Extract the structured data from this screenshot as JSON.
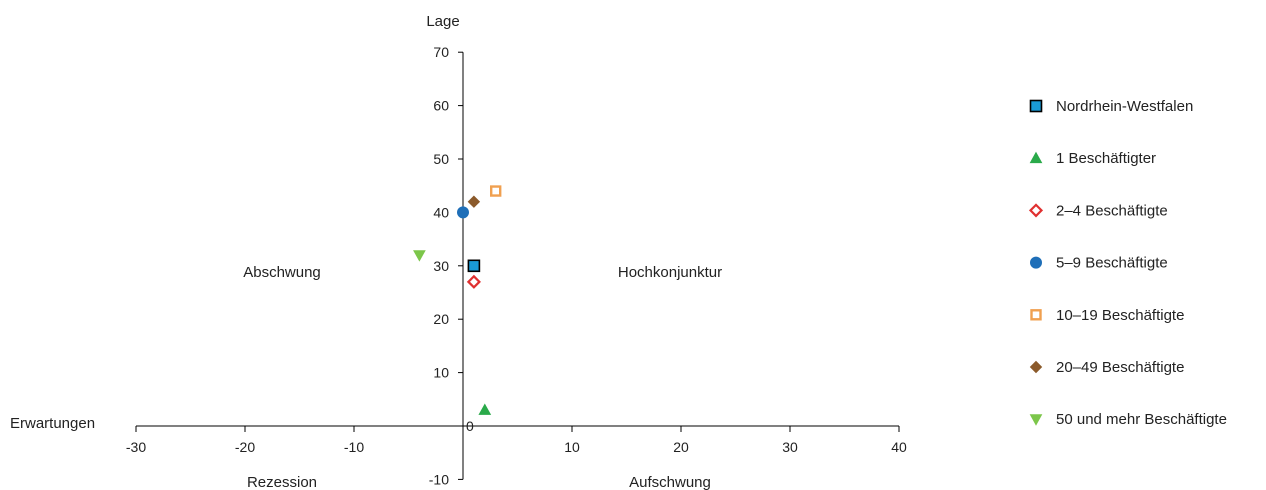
{
  "chart_data": {
    "type": "scatter",
    "xlabel": "Erwartungen",
    "ylabel": "Lage",
    "xlim": [
      -30,
      40
    ],
    "ylim": [
      -10,
      70
    ],
    "x_ticks": [
      -30,
      -20,
      -10,
      0,
      10,
      20,
      30,
      40
    ],
    "x_tick_labels": [
      "-30",
      "-20",
      "-10",
      "",
      "10",
      "20",
      "30",
      "40"
    ],
    "y_ticks": [
      -10,
      0,
      10,
      20,
      30,
      40,
      50,
      60,
      70
    ],
    "y_tick_labels": [
      "-10",
      "0",
      "10",
      "20",
      "30",
      "40",
      "50",
      "60",
      "70"
    ],
    "grid": false,
    "legend_position": "right",
    "quadrant_labels": {
      "top_left": "Abschwung",
      "top_right": "Hochkonjunktur",
      "bottom_left": "Rezession",
      "bottom_right": "Aufschwung"
    },
    "series": [
      {
        "name": "Nordrhein-Westfalen",
        "marker": "square",
        "color": "#1a9bd7",
        "stroke": "#000000",
        "x": 1,
        "y": 30
      },
      {
        "name": "1 Beschäftigter",
        "marker": "triangle-up",
        "color": "#2aaa4a",
        "stroke": "#2aaa4a",
        "x": 2,
        "y": 3
      },
      {
        "name": "2–4 Beschäftigte",
        "marker": "diamond-open",
        "color": "#ffffff",
        "stroke": "#e03030",
        "x": 1,
        "y": 27
      },
      {
        "name": "5–9 Beschäftigte",
        "marker": "circle",
        "color": "#1f6fb8",
        "stroke": "#1f6fb8",
        "x": 0,
        "y": 40
      },
      {
        "name": "10–19 Beschäftigte",
        "marker": "square-open",
        "color": "#ffffff",
        "stroke": "#f0a050",
        "x": 3,
        "y": 44
      },
      {
        "name": "20–49 Beschäftigte",
        "marker": "diamond",
        "color": "#8b5a2b",
        "stroke": "#8b5a2b",
        "x": 1,
        "y": 42
      },
      {
        "name": "50 und mehr Beschäftigte",
        "marker": "triangle-down",
        "color": "#7cc64a",
        "stroke": "#7cc64a",
        "x": -4,
        "y": 32
      }
    ]
  }
}
